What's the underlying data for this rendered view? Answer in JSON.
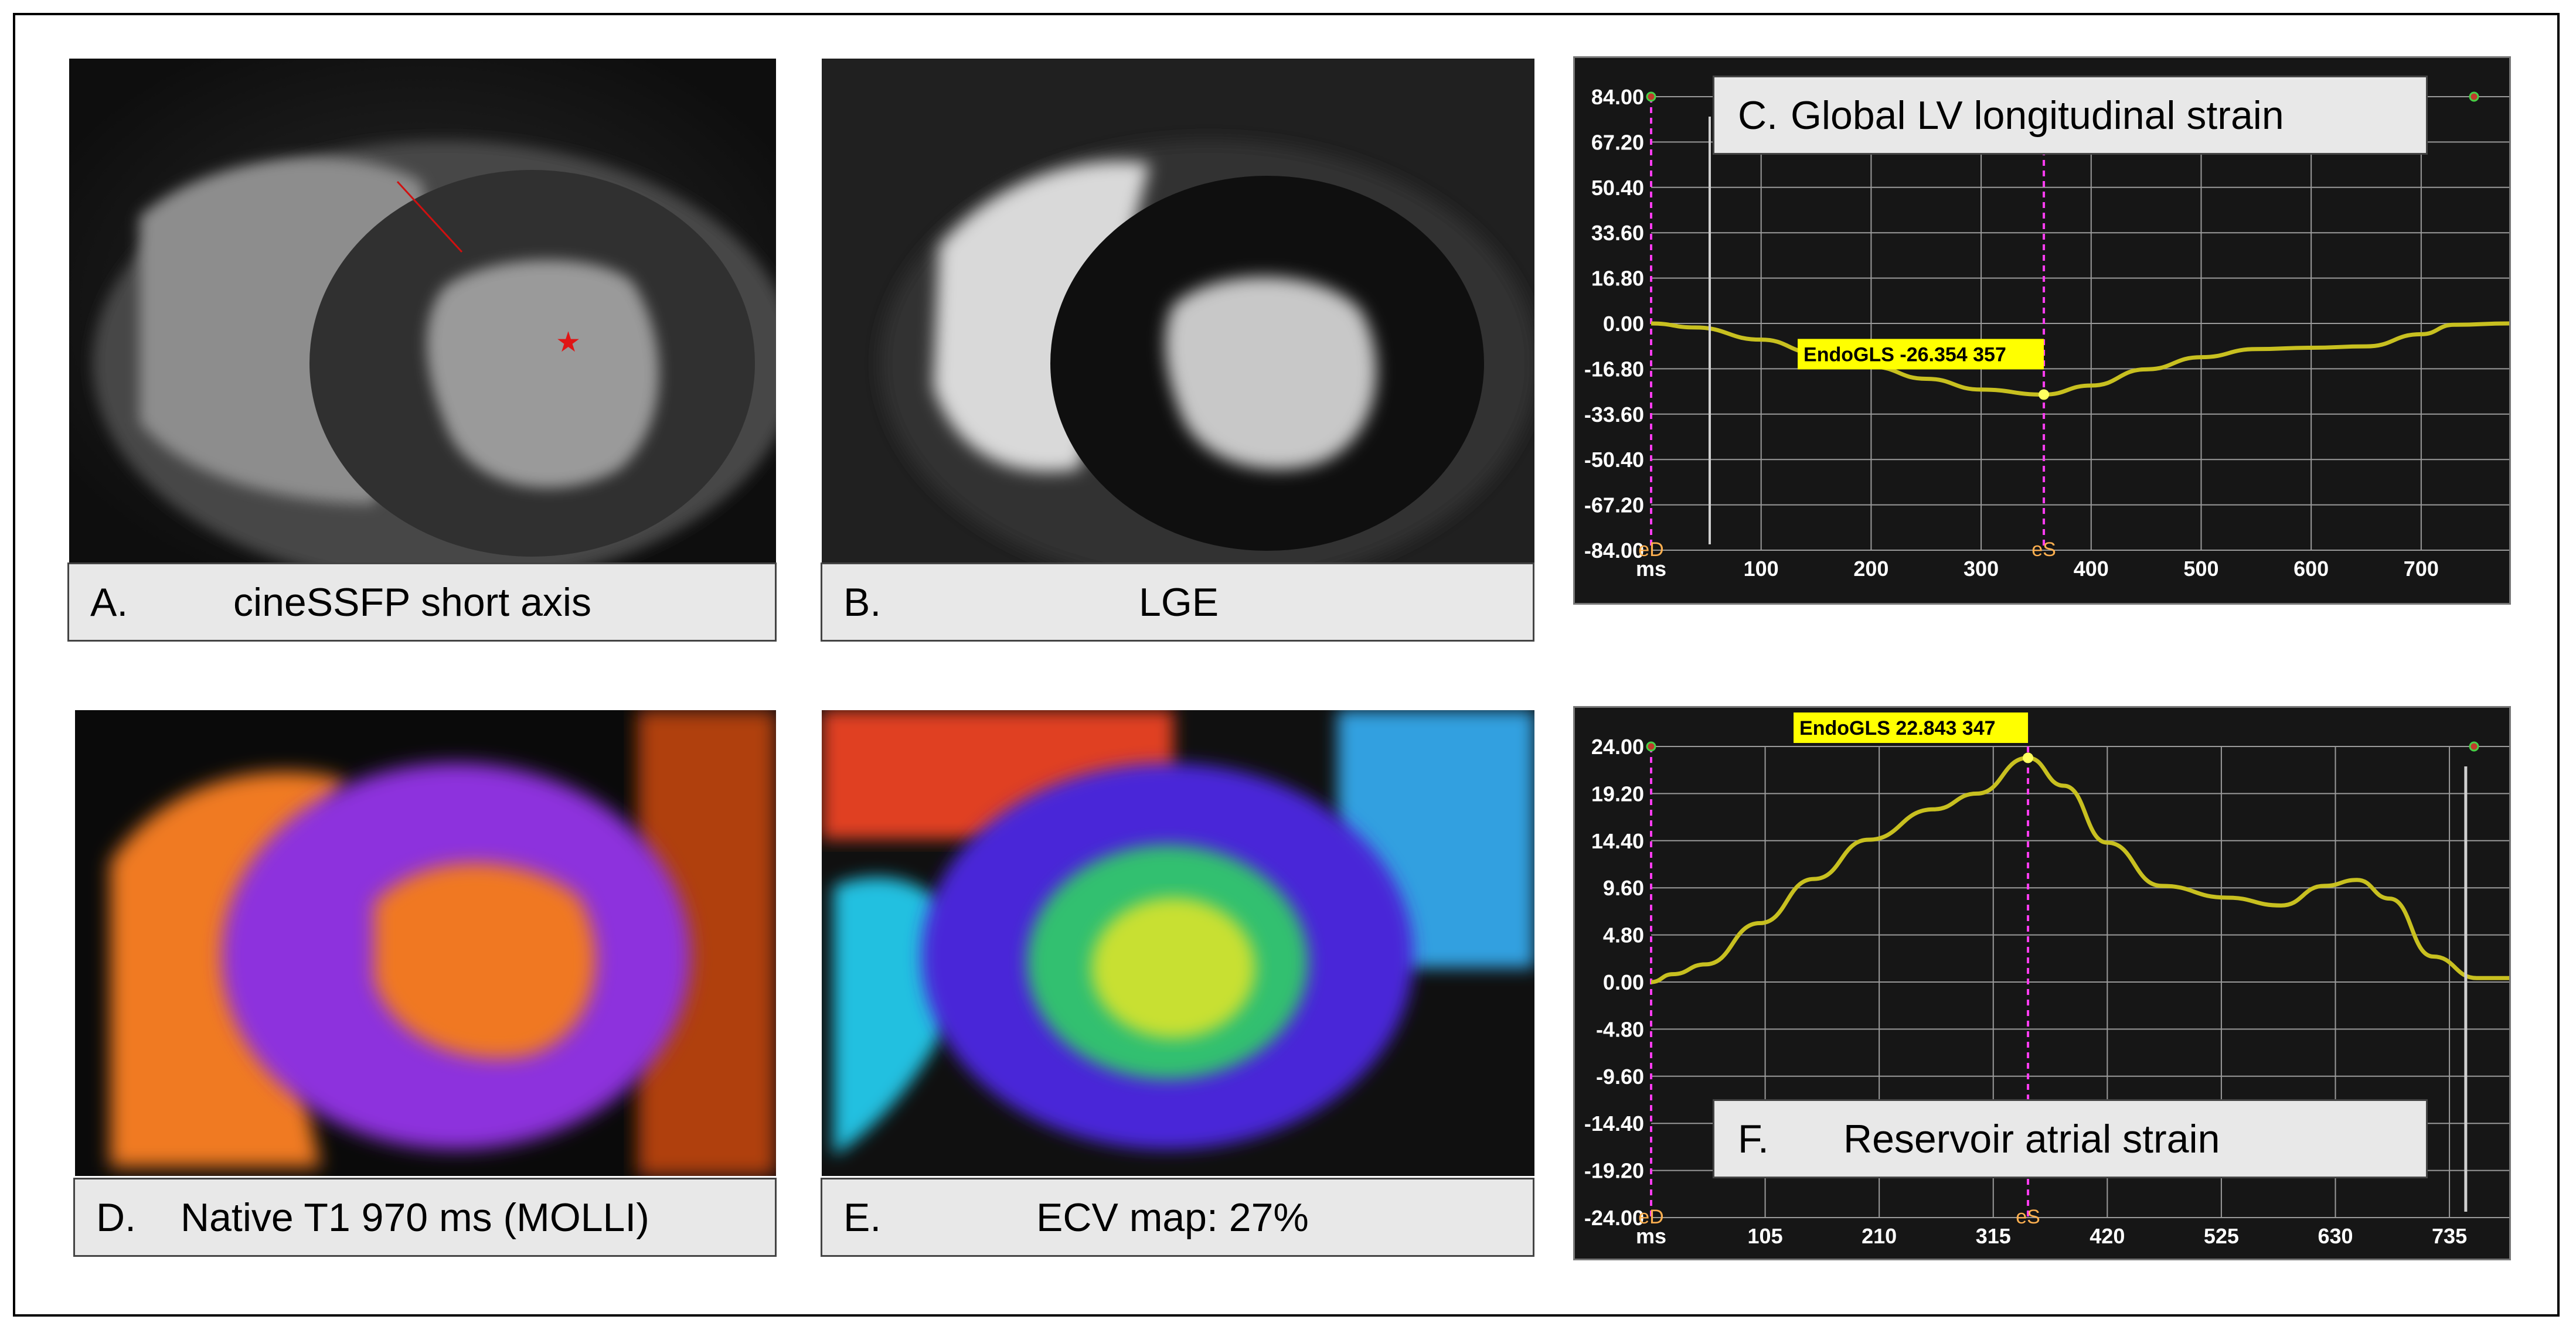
{
  "panels": {
    "a": {
      "letter": "A.",
      "caption": "cineSSFP short axis"
    },
    "b": {
      "letter": "B.",
      "caption": "LGE"
    },
    "c": {
      "letter": "C.",
      "caption": "Global LV longitudinal strain"
    },
    "d": {
      "letter": "D.",
      "caption": "Native T1 970 ms (MOLLI)"
    },
    "e": {
      "letter": "E.",
      "caption": "ECV map: 27%"
    },
    "f": {
      "letter": "F.",
      "caption": "Reservoir atrial strain"
    }
  },
  "colors": {
    "curve": "#c8c020",
    "marker": "#ff3df2",
    "grid": "#9a9a9a",
    "label_bg": "#ffff00",
    "axis_text": "#ffffff",
    "background": "#161616"
  },
  "chart_data": [
    {
      "type": "line",
      "title": "Global LV longitudinal strain",
      "xlabel": "ms",
      "ylabel": "",
      "x_ticks": [
        "100",
        "200",
        "300",
        "400",
        "500",
        "600",
        "700"
      ],
      "x_tick_values": [
        100,
        200,
        300,
        400,
        500,
        600,
        700
      ],
      "y_ticks": [
        "84.00",
        "67.20",
        "50.40",
        "33.60",
        "16.80",
        "0.00",
        "-16.80",
        "-33.60",
        "-50.40",
        "-67.20",
        "-84.00"
      ],
      "y_tick_values": [
        84,
        67.2,
        50.4,
        33.6,
        16.8,
        0,
        -16.8,
        -33.6,
        -50.4,
        -67.2,
        -84
      ],
      "xlim": [
        0,
        780
      ],
      "ylim": [
        -84,
        84
      ],
      "markers": [
        {
          "label": "eD",
          "x": 0
        },
        {
          "label": "eS",
          "x": 357
        }
      ],
      "annotation": {
        "text": "EndoGLS -26.354   357",
        "x": 357,
        "y": -26.354
      },
      "series": [
        {
          "x": [
            0,
            40,
            100,
            150,
            200,
            250,
            300,
            357,
            400,
            450,
            500,
            550,
            600,
            650,
            700,
            730,
            780
          ],
          "y": [
            0,
            -1.5,
            -6,
            -11,
            -16,
            -20.5,
            -24.5,
            -26.354,
            -23,
            -17,
            -12.5,
            -9.5,
            -9,
            -8.5,
            -4,
            -0.5,
            0
          ]
        }
      ]
    },
    {
      "type": "line",
      "title": "Reservoir atrial strain",
      "xlabel": "ms",
      "ylabel": "",
      "x_ticks": [
        "105",
        "210",
        "315",
        "420",
        "525",
        "630",
        "735"
      ],
      "x_tick_values": [
        105,
        210,
        315,
        420,
        525,
        630,
        735
      ],
      "y_ticks": [
        "24.00",
        "19.20",
        "14.40",
        "9.60",
        "4.80",
        "0.00",
        "-4.80",
        "-9.60",
        "-14.40",
        "-19.20",
        "-24.00"
      ],
      "y_tick_values": [
        24,
        19.2,
        14.4,
        9.6,
        4.8,
        0,
        -4.8,
        -9.6,
        -14.4,
        -19.2,
        -24
      ],
      "xlim": [
        0,
        790
      ],
      "ylim": [
        -24,
        24
      ],
      "markers": [
        {
          "label": "eD",
          "x": 0
        },
        {
          "label": "eS",
          "x": 347
        }
      ],
      "annotation": {
        "text": "EndoGLS 22.843   347",
        "x": 347,
        "y": 22.843
      },
      "series": [
        {
          "x": [
            0,
            20,
            50,
            100,
            150,
            200,
            260,
            300,
            347,
            380,
            420,
            470,
            530,
            580,
            620,
            650,
            680,
            720,
            760,
            790
          ],
          "y": [
            0,
            0.8,
            1.8,
            6,
            10.5,
            14.5,
            17.6,
            19.2,
            22.843,
            20,
            14.2,
            9.8,
            8.6,
            7.8,
            9.8,
            10.4,
            8.5,
            2.6,
            0.4,
            0.4
          ]
        }
      ]
    }
  ]
}
